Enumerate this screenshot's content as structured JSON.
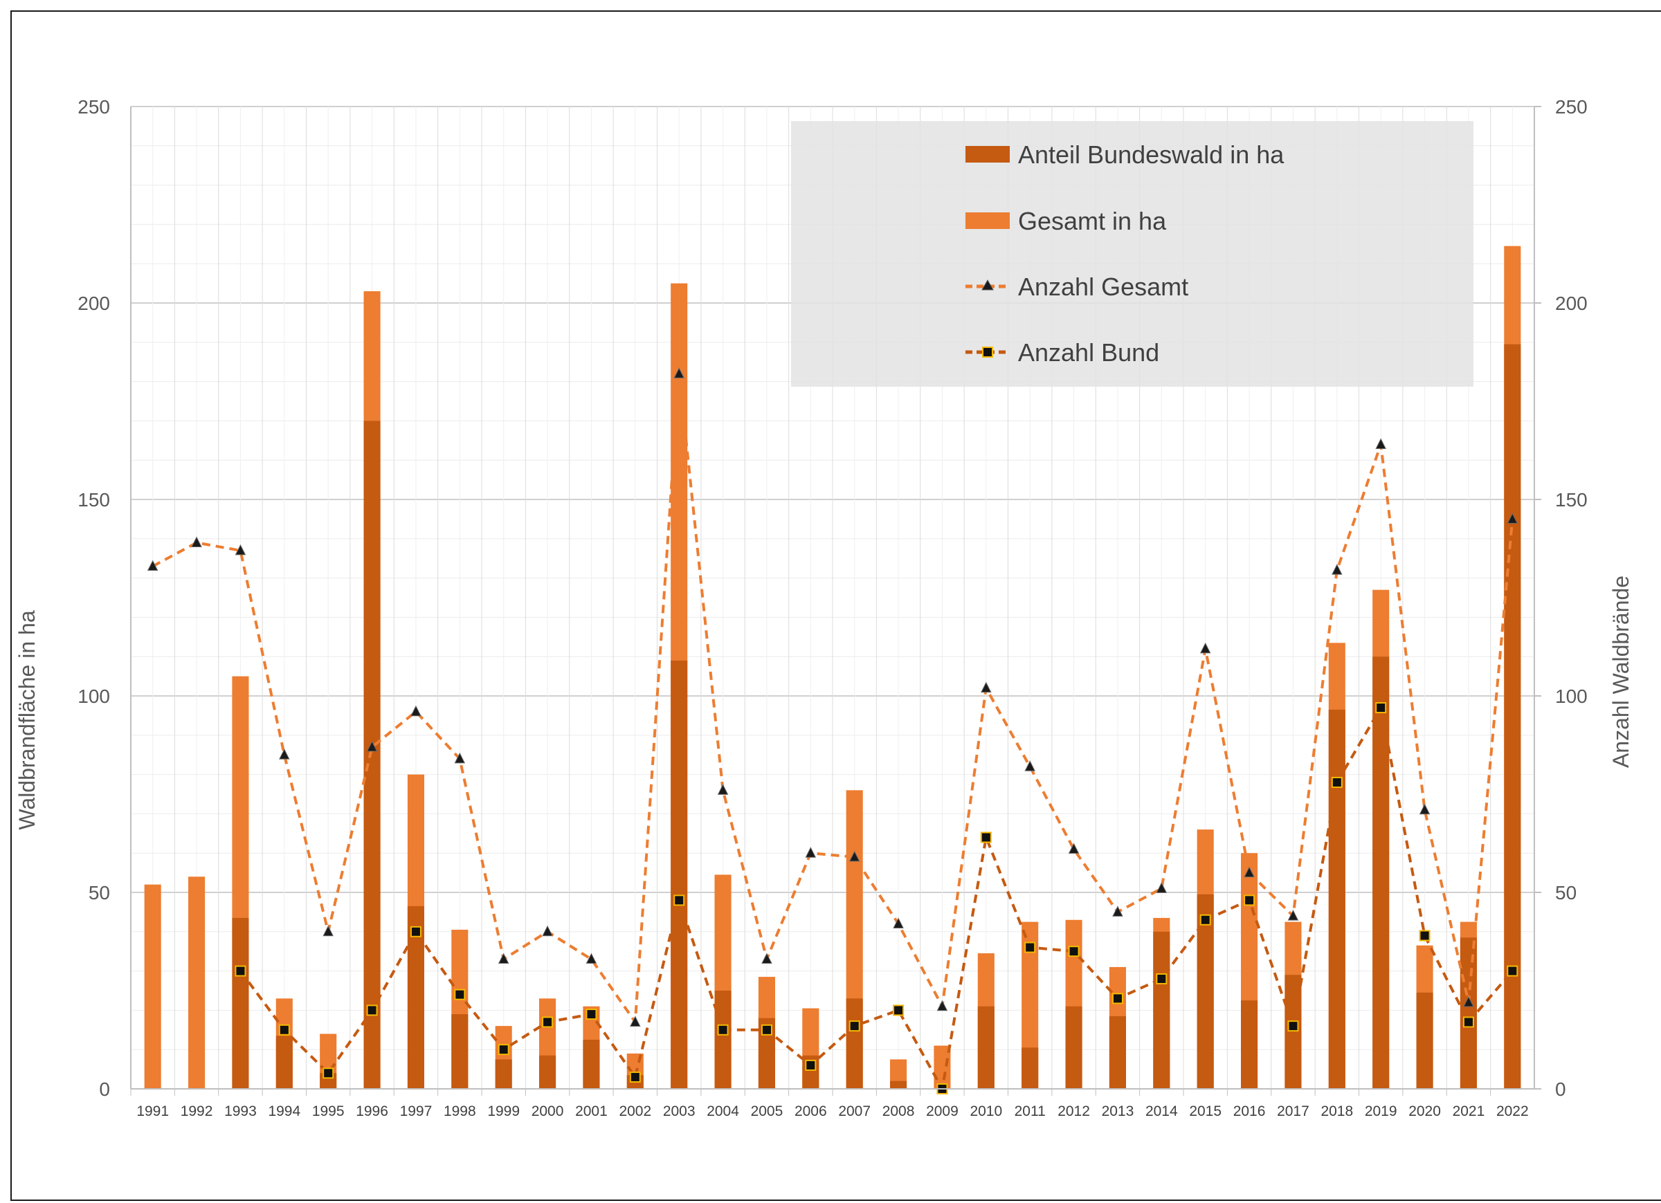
{
  "chart_data": {
    "type": "bar",
    "title": "",
    "ylabel_left": "Waldbrandfläche in ha",
    "ylabel_right": "Anzahl Waldbrände",
    "ylim_left": [
      0,
      250
    ],
    "ylim_right": [
      0,
      250
    ],
    "yticks_left": [
      "0",
      "50",
      "100",
      "150",
      "200",
      "250"
    ],
    "yticks_right": [
      "0",
      "50",
      "100",
      "150",
      "200",
      "250"
    ],
    "grid": true,
    "legend_position": "top-right",
    "categories": [
      "1991",
      "1992",
      "1993",
      "1994",
      "1995",
      "1996",
      "1997",
      "1998",
      "1999",
      "2000",
      "2001",
      "2002",
      "2003",
      "2004",
      "2005",
      "2006",
      "2007",
      "2008",
      "2009",
      "2010",
      "2011",
      "2012",
      "2013",
      "2014",
      "2015",
      "2016",
      "2017",
      "2018",
      "2019",
      "2020",
      "2021",
      "2022"
    ],
    "series": [
      {
        "name": "Anteil Bundeswald in ha",
        "kind": "bar",
        "axis": "left",
        "color": "#c55a11",
        "values": [
          0,
          0,
          43.5,
          13.5,
          4,
          170,
          46.5,
          19,
          7.5,
          8.5,
          12.5,
          3.5,
          109,
          25,
          18,
          8.5,
          23,
          2,
          0,
          21,
          10.5,
          21,
          18.5,
          40,
          49.5,
          22.5,
          29,
          96.5,
          110,
          24.5,
          38.5,
          189.5
        ]
      },
      {
        "name": "Gesamt in ha",
        "kind": "bar",
        "axis": "left",
        "color": "#ed7d31",
        "values": [
          52,
          54,
          105,
          23,
          14,
          203,
          80,
          40.5,
          16,
          23,
          21,
          9,
          205,
          54.5,
          28.5,
          20.5,
          76,
          7.5,
          11,
          34.5,
          42.5,
          43,
          31,
          43.5,
          66,
          60,
          42.5,
          113.5,
          127,
          36.5,
          42.5,
          214.5
        ]
      },
      {
        "name": "Anzahl Gesamt",
        "kind": "line",
        "axis": "right",
        "color": "#ed7d31",
        "values": [
          133,
          139,
          137,
          85,
          40,
          87,
          96,
          84,
          33,
          40,
          33,
          17,
          182,
          76,
          33,
          60,
          59,
          42,
          21,
          102,
          82,
          61,
          45,
          51,
          112,
          55,
          44,
          132,
          164,
          71,
          22,
          145
        ]
      },
      {
        "name": "Anzahl Bund",
        "kind": "line",
        "axis": "right",
        "color": "#c55a11",
        "values": [
          null,
          null,
          30,
          15,
          4,
          20,
          40,
          24,
          10,
          17,
          19,
          3,
          48,
          15,
          15,
          6,
          16,
          20,
          0,
          64,
          36,
          35,
          23,
          28,
          43,
          48,
          16,
          78,
          97,
          39,
          17,
          30
        ]
      }
    ]
  }
}
